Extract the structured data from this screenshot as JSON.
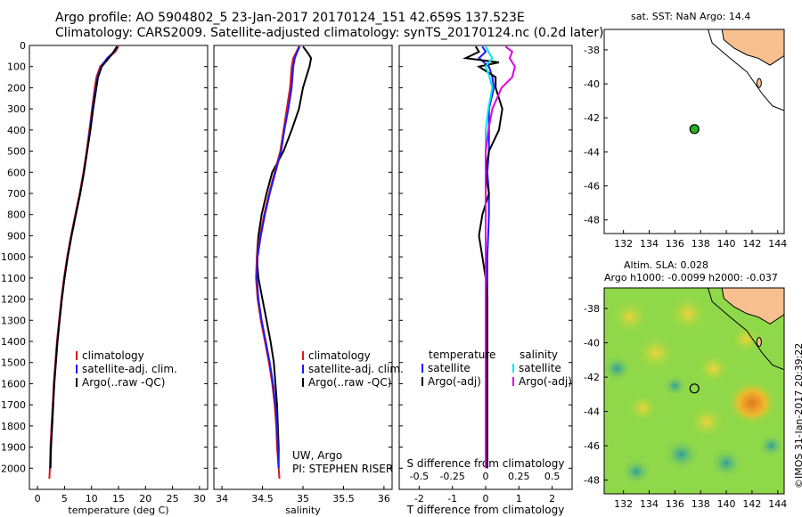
{
  "header": {
    "title_line1": "Argo profile: AO 5904802_5 23-Jan-2017 20170124_151 42.659S 137.523E",
    "title_line2": "Climatology: CARS2009. Satellite-adjusted climatology: synTS_20170124.nc (0.2d later)"
  },
  "colors": {
    "climatology": "#d7191c",
    "satellite": "#1a1aff",
    "argo": "#000000",
    "sat_salinity": "#00e5ee",
    "argo_salinity": "#e000e0",
    "land": "#f8c08e",
    "float_marker": "#22b222"
  },
  "chart_data": [
    {
      "type": "line",
      "id": "temperature_profile",
      "xlabel": "temperature (deg C)",
      "ylabel": "",
      "xlim": [
        -1.5,
        31.5
      ],
      "ylim": [
        2100,
        0
      ],
      "xticks": [
        0,
        5,
        10,
        15,
        20,
        25,
        30
      ],
      "yticks": [
        0,
        100,
        200,
        300,
        400,
        500,
        600,
        700,
        800,
        900,
        1000,
        1100,
        1200,
        1300,
        1400,
        1500,
        1600,
        1700,
        1800,
        1900,
        2000
      ],
      "legend": [
        "climatology",
        "satellite-adj. clim.",
        "Argo(..raw -QC)"
      ],
      "series": [
        {
          "name": "climatology",
          "depth": [
            5,
            30,
            60,
            100,
            150,
            200,
            300,
            400,
            500,
            600,
            700,
            800,
            900,
            1000,
            1100,
            1200,
            1300,
            1400,
            1500,
            1600,
            1700,
            1800,
            1900,
            2000,
            2050
          ],
          "values": [
            15.0,
            14.4,
            13.0,
            11.6,
            10.9,
            10.6,
            10.1,
            9.6,
            9.1,
            8.5,
            7.8,
            7.0,
            6.2,
            5.5,
            4.9,
            4.4,
            4.0,
            3.6,
            3.3,
            3.0,
            2.8,
            2.6,
            2.4,
            2.3,
            2.2
          ]
        },
        {
          "name": "satellite-adj. clim.",
          "depth": [
            5,
            30,
            60,
            100,
            150,
            200,
            300,
            400,
            500,
            600,
            700,
            800,
            900,
            1000,
            1100,
            1200,
            1300,
            1400,
            1500,
            1600,
            1700,
            1800,
            1900,
            2000
          ],
          "values": [
            14.8,
            14.2,
            12.9,
            11.8,
            11.1,
            10.8,
            10.2,
            9.7,
            9.2,
            8.6,
            7.9,
            7.1,
            6.3,
            5.6,
            5.0,
            4.5,
            4.1,
            3.7,
            3.4,
            3.1,
            2.9,
            2.7,
            2.5,
            2.4
          ]
        },
        {
          "name": "Argo(..raw -QC)",
          "depth": [
            5,
            30,
            60,
            100,
            150,
            200,
            300,
            400,
            500,
            600,
            700,
            800,
            900,
            1000,
            1100,
            1200,
            1300,
            1400,
            1500,
            1600,
            1700,
            1800,
            1900,
            2000
          ],
          "values": [
            14.7,
            14.1,
            13.2,
            11.9,
            11.2,
            10.9,
            10.3,
            9.8,
            9.2,
            8.6,
            7.9,
            7.1,
            6.3,
            5.6,
            5.0,
            4.5,
            4.1,
            3.7,
            3.4,
            3.1,
            2.9,
            2.7,
            2.5,
            2.4
          ]
        }
      ]
    },
    {
      "type": "line",
      "id": "salinity_profile",
      "xlabel": "salinity",
      "xlim": [
        33.9,
        36.1
      ],
      "ylim": [
        2100,
        0
      ],
      "xticks": [
        34,
        34.5,
        35,
        35.5,
        36
      ],
      "legend": [
        "climatology",
        "satellite-adj. clim.",
        "Argo(..raw -QC)"
      ],
      "annotation_lines": [
        "UW, Argo",
        "PI: STEPHEN RISER"
      ],
      "series": [
        {
          "name": "climatology",
          "depth": [
            5,
            30,
            60,
            100,
            200,
            300,
            400,
            500,
            600,
            700,
            800,
            900,
            1000,
            1100,
            1200,
            1300,
            1400,
            1500,
            1600,
            1700,
            1800,
            1900,
            2000,
            2050
          ],
          "values": [
            34.95,
            34.92,
            34.88,
            34.86,
            34.84,
            34.8,
            34.76,
            34.72,
            34.65,
            34.58,
            34.52,
            34.47,
            34.43,
            34.42,
            34.44,
            34.48,
            34.53,
            34.58,
            34.62,
            34.65,
            34.67,
            34.68,
            34.7,
            34.71
          ]
        },
        {
          "name": "satellite-adj. clim.",
          "depth": [
            5,
            30,
            60,
            100,
            200,
            300,
            400,
            500,
            600,
            700,
            800,
            900,
            1000,
            1100,
            1200,
            1300,
            1400,
            1500,
            1600,
            1700,
            1800,
            1900,
            2000
          ],
          "values": [
            34.96,
            34.93,
            34.9,
            34.88,
            34.86,
            34.82,
            34.77,
            34.73,
            34.66,
            34.59,
            34.53,
            34.48,
            34.44,
            34.43,
            34.45,
            34.49,
            34.54,
            34.59,
            34.63,
            34.66,
            34.68,
            34.69,
            34.7
          ]
        },
        {
          "name": "Argo(..raw -QC)",
          "depth": [
            5,
            30,
            60,
            100,
            150,
            200,
            300,
            400,
            500,
            600,
            700,
            800,
            900,
            1000,
            1100,
            1200,
            1300,
            1400,
            1500,
            1600,
            1700,
            1800,
            1900,
            2000
          ],
          "values": [
            35.0,
            35.05,
            35.1,
            35.08,
            35.04,
            35.0,
            34.95,
            34.86,
            34.76,
            34.62,
            34.55,
            34.49,
            34.45,
            34.43,
            34.45,
            34.5,
            34.55,
            34.6,
            34.64,
            34.66,
            34.68,
            34.69,
            34.7,
            34.7
          ]
        }
      ]
    },
    {
      "type": "line",
      "id": "difference_profile",
      "xlabel": "T difference from climatology",
      "xlabel_top": "S difference from climatology",
      "xlim": [
        -2.6,
        2.6
      ],
      "ylim": [
        2100,
        0
      ],
      "xticks_T": [
        -2,
        -1,
        0,
        1,
        2
      ],
      "xticks_S": [
        "-0.5",
        "-0.25",
        "0",
        "0.25",
        "0.5"
      ],
      "legend_temperature_title": "temperature",
      "legend_salinity_title": "salinity",
      "legend": [
        "satellite",
        "Argo(-adj)",
        "satellite",
        "Argo(-adj)"
      ],
      "series": [
        {
          "name": "T satellite",
          "depth": [
            5,
            30,
            60,
            100,
            150,
            200,
            300,
            400,
            500,
            600,
            700,
            800,
            1000,
            1200,
            1500,
            1800,
            2000
          ],
          "values": [
            -0.1,
            0.0,
            -0.2,
            0.1,
            0.2,
            0.25,
            0.1,
            0.1,
            0.1,
            0.05,
            0.1,
            0.1,
            0.05,
            0.05,
            0.05,
            0.05,
            0.05
          ]
        },
        {
          "name": "T Argo(-adj)",
          "depth": [
            5,
            30,
            60,
            80,
            100,
            150,
            200,
            300,
            400,
            500,
            600,
            700,
            800,
            900,
            1000,
            1100,
            1200,
            1500,
            1800,
            2000
          ],
          "values": [
            -0.3,
            -0.2,
            -0.6,
            0.4,
            -0.2,
            0.3,
            0.3,
            0.5,
            0.4,
            0.1,
            0.0,
            0.1,
            -0.1,
            -0.2,
            -0.1,
            0.0,
            0.05,
            0.05,
            0.05,
            0.05
          ]
        },
        {
          "name": "S satellite",
          "depth": [
            5,
            30,
            60,
            100,
            150,
            200,
            300,
            400,
            500,
            600,
            700,
            800,
            1000,
            1200,
            1500,
            1800,
            2000
          ],
          "values": [
            0.0,
            0.02,
            0.05,
            0.0,
            0.03,
            0.05,
            0.02,
            0.0,
            0.0,
            0.0,
            0.0,
            0.0,
            0.0,
            0.0,
            0.0,
            0.0,
            0.0
          ]
        },
        {
          "name": "S Argo(-adj)",
          "depth": [
            5,
            30,
            60,
            100,
            150,
            200,
            300,
            400,
            500,
            600,
            700,
            800,
            1000,
            1200,
            1500,
            1800,
            2000
          ],
          "values": [
            0.15,
            0.2,
            0.18,
            0.22,
            0.2,
            0.12,
            0.05,
            0.02,
            0.0,
            0.0,
            0.0,
            0.0,
            0.0,
            0.0,
            0.0,
            0.0,
            0.0
          ]
        }
      ]
    },
    {
      "type": "scatter",
      "id": "location_map",
      "title": "sat. SST: NaN Argo: 14.4",
      "xlim": [
        130.5,
        144.5
      ],
      "ylim": [
        -48.8,
        -36.8
      ],
      "xticks": [
        132,
        134,
        136,
        138,
        140,
        142,
        144
      ],
      "yticks": [
        -38,
        -40,
        -42,
        -44,
        -46,
        -48
      ],
      "float_position": {
        "lon": 137.52,
        "lat": -42.66
      }
    },
    {
      "type": "heatmap",
      "id": "sla_map",
      "title_line1": "Altim. SLA: 0.028",
      "title_line2": "Argo h1000: -0.0099 h2000: -0.037",
      "xlim": [
        130.5,
        144.5
      ],
      "ylim": [
        -48.8,
        -36.8
      ],
      "xticks": [
        132,
        134,
        136,
        138,
        140,
        142,
        144
      ],
      "yticks": [
        -38,
        -40,
        -42,
        -44,
        -46,
        -48
      ],
      "float_position": {
        "lon": 137.52,
        "lat": -42.66
      },
      "features": [
        {
          "lon": 132.5,
          "lat": -38.5,
          "value": 0.3
        },
        {
          "lon": 137.0,
          "lat": -38.3,
          "value": 0.35
        },
        {
          "lon": 141.5,
          "lat": -39.8,
          "value": 0.2
        },
        {
          "lon": 134.5,
          "lat": -40.6,
          "value": 0.35
        },
        {
          "lon": 139.0,
          "lat": -41.5,
          "value": 0.25
        },
        {
          "lon": 142.0,
          "lat": -43.5,
          "value": 0.5
        },
        {
          "lon": 138.5,
          "lat": -44.6,
          "value": 0.3
        },
        {
          "lon": 133.5,
          "lat": -43.8,
          "value": 0.2
        },
        {
          "lon": 131.5,
          "lat": -41.5,
          "value": -0.2
        },
        {
          "lon": 136.5,
          "lat": -46.5,
          "value": -0.3
        },
        {
          "lon": 140.0,
          "lat": -47.0,
          "value": -0.25
        },
        {
          "lon": 133.0,
          "lat": -47.5,
          "value": -0.2
        },
        {
          "lon": 143.5,
          "lat": -46.0,
          "value": -0.15
        },
        {
          "lon": 136.0,
          "lat": -42.5,
          "value": -0.1
        }
      ]
    }
  ],
  "footer": {
    "stamp": "©IMOS 31-Jan-2017 20:39:22"
  }
}
